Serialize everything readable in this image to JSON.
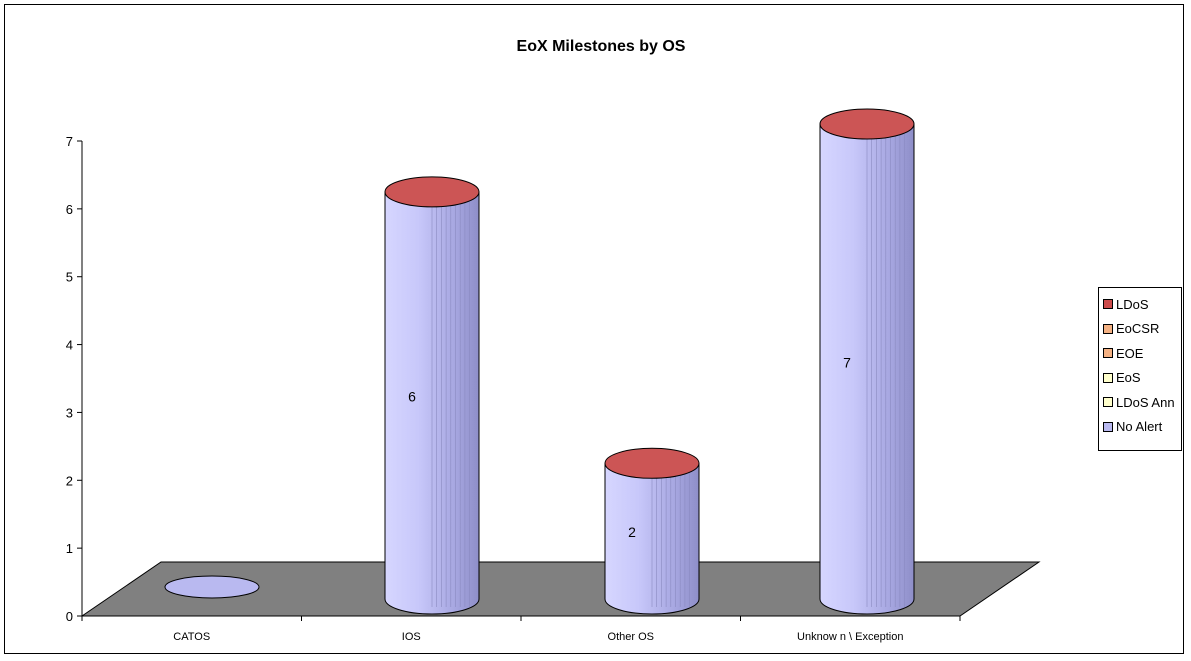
{
  "chart_data": {
    "type": "bar",
    "title": "EoX Milestones by OS",
    "categories": [
      "CATOS",
      "IOS",
      "Other OS",
      "Unknow n \\ Exception"
    ],
    "series": [
      {
        "name": "LDoS",
        "values": [
          0,
          0,
          0,
          0
        ],
        "color": "#CC4B4B"
      },
      {
        "name": "EoCSR",
        "values": [
          0,
          0,
          0,
          0
        ],
        "color": "#F4B183"
      },
      {
        "name": "EOE",
        "values": [
          0,
          0,
          0,
          0
        ],
        "color": "#F4B183"
      },
      {
        "name": "EoS",
        "values": [
          0,
          0,
          0,
          0
        ],
        "color": "#FFFFCC"
      },
      {
        "name": "LDoS Ann",
        "values": [
          0,
          0,
          0,
          0
        ],
        "color": "#FFFFCC"
      },
      {
        "name": "No Alert",
        "values": [
          0,
          6,
          2,
          7
        ],
        "color": "#B9B9F0"
      }
    ],
    "data_labels": [
      "",
      "6",
      "2",
      "7"
    ],
    "ylim": [
      0,
      7
    ],
    "yticks": [
      "0",
      "1",
      "2",
      "3",
      "4",
      "5",
      "6",
      "7"
    ],
    "legend_position": "right",
    "floor_color": "#808080",
    "cap_color": "#CC5555",
    "cylinder_color": "#B9B9F0"
  }
}
